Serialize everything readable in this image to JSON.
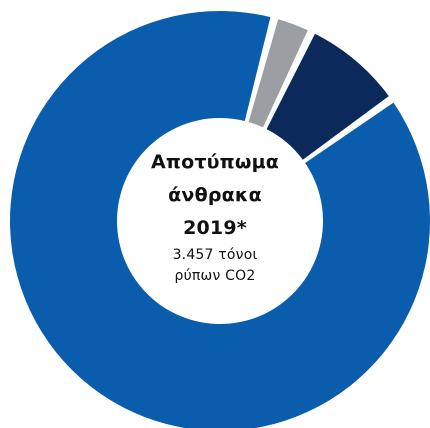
{
  "colors": {
    "main": "#0a5cad",
    "secondary": "#0b2a5b",
    "minor": "#9b9ea3",
    "background": "#ffffff"
  },
  "center": {
    "title_line1": "Αποτύπωμα",
    "title_line2": "άνθρακα",
    "title_line3": "2019*",
    "subtitle_line1": "3.457 τόνοι",
    "subtitle_line2": "ρύπων CO2"
  },
  "chart_data": {
    "type": "pie",
    "title": "Αποτύπωμα άνθρακα 2019*",
    "subtitle": "3.457 τόνοι ρύπων CO2",
    "start_angle_deg": 15,
    "series": [
      {
        "value": 3,
        "color": "#9b9ea3"
      },
      {
        "value": 8,
        "color": "#0b2a5b"
      },
      {
        "value": 89,
        "color": "#0a5cad"
      }
    ]
  }
}
